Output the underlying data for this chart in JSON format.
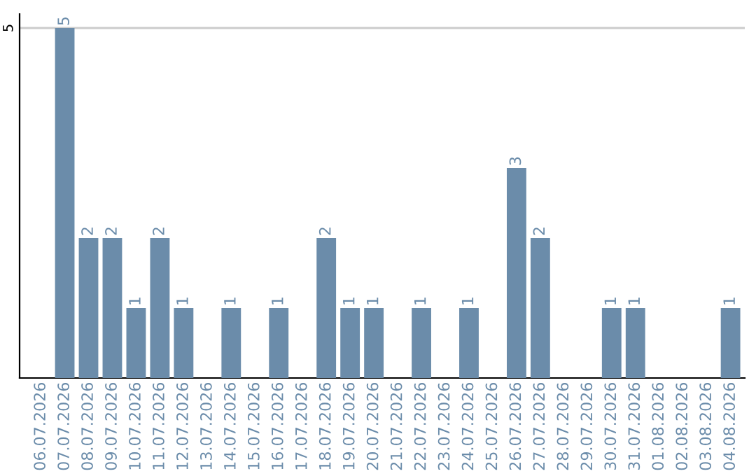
{
  "chart_data": {
    "type": "bar",
    "categories": [
      "06.07.2026",
      "07.07.2026",
      "08.07.2026",
      "09.07.2026",
      "10.07.2026",
      "11.07.2026",
      "12.07.2026",
      "13.07.2026",
      "14.07.2026",
      "15.07.2026",
      "16.07.2026",
      "17.07.2026",
      "18.07.2026",
      "19.07.2026",
      "20.07.2026",
      "21.07.2026",
      "22.07.2026",
      "23.07.2026",
      "24.07.2026",
      "25.07.2026",
      "26.07.2026",
      "27.07.2026",
      "28.07.2026",
      "29.07.2026",
      "30.07.2026",
      "31.07.2026",
      "01.08.2026",
      "02.08.2026",
      "03.08.2026",
      "04.08.2026"
    ],
    "values": [
      0,
      5,
      2,
      2,
      1,
      2,
      1,
      0,
      1,
      0,
      1,
      0,
      2,
      1,
      1,
      0,
      1,
      0,
      1,
      0,
      3,
      2,
      0,
      0,
      1,
      1,
      0,
      0,
      0,
      1
    ],
    "value_labels": [
      null,
      "5",
      "2",
      "2",
      "1",
      "2",
      "1",
      null,
      "1",
      null,
      "1",
      null,
      "2",
      "1",
      "1",
      null,
      "1",
      null,
      "1",
      null,
      "3",
      "2",
      null,
      null,
      "1",
      "1",
      null,
      null,
      null,
      "1"
    ],
    "color": "#6b8caa",
    "ylim": [
      0,
      5.2
    ],
    "yticks": [
      5
    ],
    "grid": "y",
    "legend": false
  }
}
